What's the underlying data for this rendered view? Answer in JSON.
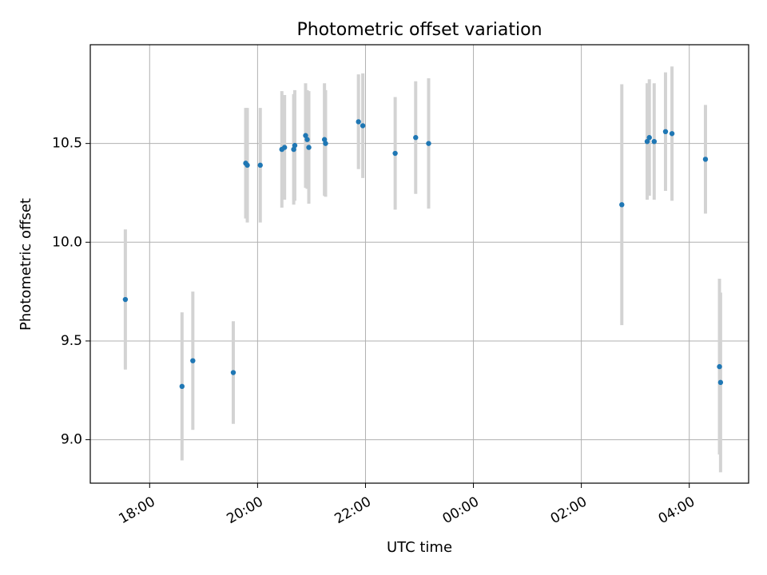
{
  "chart_data": {
    "type": "scatter",
    "title": "Photometric offset variation",
    "xlabel": "UTC time",
    "ylabel": "Photometric offset",
    "x_axis_type": "time",
    "x_unit": "hours UTC (values beyond 24 are after midnight of the following day)",
    "xlim": [
      16.9,
      29.1
    ],
    "ylim": [
      8.78,
      11.0
    ],
    "grid": true,
    "legend": "none",
    "x_ticks": [
      {
        "value": 18,
        "label": "18:00"
      },
      {
        "value": 20,
        "label": "20:00"
      },
      {
        "value": 22,
        "label": "22:00"
      },
      {
        "value": 24,
        "label": "00:00"
      },
      {
        "value": 26,
        "label": "02:00"
      },
      {
        "value": 28,
        "label": "04:00"
      }
    ],
    "y_ticks": [
      {
        "value": 9.0,
        "label": "9.0"
      },
      {
        "value": 9.5,
        "label": "9.5"
      },
      {
        "value": 10.0,
        "label": "10.0"
      },
      {
        "value": 10.5,
        "label": "10.5"
      }
    ],
    "colors": {
      "point": "#1f77b4",
      "errorbar": "#d3d3d3",
      "grid": "#b0b0b0",
      "axes": "#000000"
    },
    "series": [
      {
        "points": [
          {
            "x": 17.55,
            "y": 9.71,
            "err": 0.355
          },
          {
            "x": 18.6,
            "y": 9.27,
            "err": 0.375
          },
          {
            "x": 18.8,
            "y": 9.4,
            "err": 0.35
          },
          {
            "x": 19.55,
            "y": 9.34,
            "err": 0.26
          },
          {
            "x": 19.78,
            "y": 10.4,
            "err": 0.28
          },
          {
            "x": 19.81,
            "y": 10.39,
            "err": 0.29
          },
          {
            "x": 20.05,
            "y": 10.39,
            "err": 0.29
          },
          {
            "x": 20.45,
            "y": 10.47,
            "err": 0.295
          },
          {
            "x": 20.5,
            "y": 10.48,
            "err": 0.265
          },
          {
            "x": 20.67,
            "y": 10.47,
            "err": 0.28
          },
          {
            "x": 20.69,
            "y": 10.49,
            "err": 0.28
          },
          {
            "x": 20.89,
            "y": 10.54,
            "err": 0.265
          },
          {
            "x": 20.92,
            "y": 10.52,
            "err": 0.25
          },
          {
            "x": 20.95,
            "y": 10.48,
            "err": 0.285
          },
          {
            "x": 21.24,
            "y": 10.52,
            "err": 0.285
          },
          {
            "x": 21.26,
            "y": 10.5,
            "err": 0.27
          },
          {
            "x": 21.87,
            "y": 10.61,
            "err": 0.24
          },
          {
            "x": 21.95,
            "y": 10.59,
            "err": 0.265
          },
          {
            "x": 22.55,
            "y": 10.45,
            "err": 0.285
          },
          {
            "x": 22.93,
            "y": 10.53,
            "err": 0.285
          },
          {
            "x": 23.17,
            "y": 10.5,
            "err": 0.33
          },
          {
            "x": 26.75,
            "y": 10.19,
            "err": 0.61
          },
          {
            "x": 27.22,
            "y": 10.51,
            "err": 0.295
          },
          {
            "x": 27.26,
            "y": 10.53,
            "err": 0.295
          },
          {
            "x": 27.35,
            "y": 10.51,
            "err": 0.295
          },
          {
            "x": 27.56,
            "y": 10.56,
            "err": 0.3
          },
          {
            "x": 27.68,
            "y": 10.55,
            "err": 0.34
          },
          {
            "x": 28.3,
            "y": 10.42,
            "err": 0.275
          },
          {
            "x": 28.56,
            "y": 9.37,
            "err": 0.445
          },
          {
            "x": 28.58,
            "y": 9.29,
            "err": 0.455
          }
        ]
      }
    ]
  }
}
